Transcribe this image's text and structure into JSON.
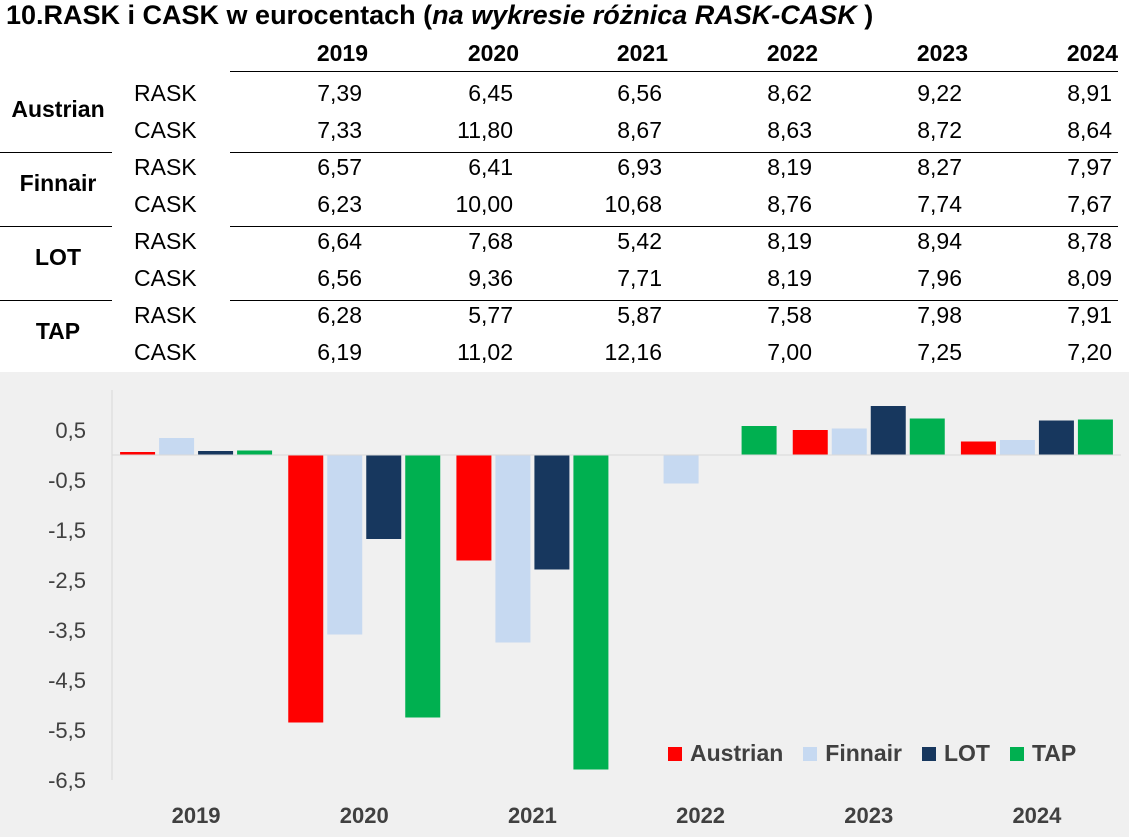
{
  "title": {
    "main": "10.RASK i CASK w eurocentach (",
    "italic": "na wykresie różnica RASK-CASK",
    "tail": " )"
  },
  "table": {
    "years": [
      "2019",
      "2020",
      "2021",
      "2022",
      "2023",
      "2024"
    ],
    "metrics": [
      "RASK",
      "CASK"
    ],
    "airlines": [
      {
        "name": "Austrian",
        "rask": [
          "7,39",
          "6,45",
          "6,56",
          "8,62",
          "9,22",
          "8,91"
        ],
        "cask": [
          "7,33",
          "11,80",
          "8,67",
          "8,63",
          "8,72",
          "8,64"
        ]
      },
      {
        "name": "Finnair",
        "rask": [
          "6,57",
          "6,41",
          "6,93",
          "8,19",
          "8,27",
          "7,97"
        ],
        "cask": [
          "6,23",
          "10,00",
          "10,68",
          "8,76",
          "7,74",
          "7,67"
        ]
      },
      {
        "name": "LOT",
        "rask": [
          "6,64",
          "7,68",
          "5,42",
          "8,19",
          "8,94",
          "8,78"
        ],
        "cask": [
          "6,56",
          "9,36",
          "7,71",
          "8,19",
          "7,96",
          "8,09"
        ]
      },
      {
        "name": "TAP",
        "rask": [
          "6,28",
          "5,77",
          "5,87",
          "7,58",
          "7,98",
          "7,91"
        ],
        "cask": [
          "6,19",
          "11,02",
          "12,16",
          "7,00",
          "7,25",
          "7,20"
        ]
      }
    ]
  },
  "chart_data": {
    "type": "bar",
    "categories": [
      "2019",
      "2020",
      "2021",
      "2022",
      "2023",
      "2024"
    ],
    "series": [
      {
        "name": "Austrian",
        "color": "#ff0000",
        "values": [
          0.06,
          -5.35,
          -2.11,
          -0.01,
          0.5,
          0.27
        ]
      },
      {
        "name": "Finnair",
        "color": "#c6d9f1",
        "values": [
          0.34,
          -3.59,
          -3.75,
          -0.57,
          0.53,
          0.3
        ]
      },
      {
        "name": "LOT",
        "color": "#17375e",
        "values": [
          0.08,
          -1.68,
          -2.29,
          0.0,
          0.98,
          0.69
        ]
      },
      {
        "name": "TAP",
        "color": "#00b050",
        "values": [
          0.09,
          -5.25,
          -6.29,
          0.58,
          0.73,
          0.71
        ]
      }
    ],
    "ylim": [
      -6.5,
      1.3
    ],
    "yticks": [
      "0,5",
      "-0,5",
      "-1,5",
      "-2,5",
      "-3,5",
      "-4,5",
      "-5,5",
      "-6,5"
    ],
    "ytick_values": [
      0.5,
      -0.5,
      -1.5,
      -2.5,
      -3.5,
      -4.5,
      -5.5,
      -6.5
    ],
    "legend_position": "bottom-right",
    "grid": false
  }
}
